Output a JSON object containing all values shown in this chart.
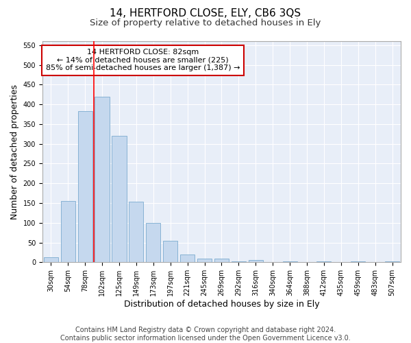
{
  "title": "14, HERTFORD CLOSE, ELY, CB6 3QS",
  "subtitle": "Size of property relative to detached houses in Ely",
  "xlabel": "Distribution of detached houses by size in Ely",
  "ylabel": "Number of detached properties",
  "categories": [
    "30sqm",
    "54sqm",
    "78sqm",
    "102sqm",
    "125sqm",
    "149sqm",
    "173sqm",
    "197sqm",
    "221sqm",
    "245sqm",
    "269sqm",
    "292sqm",
    "316sqm",
    "340sqm",
    "364sqm",
    "388sqm",
    "412sqm",
    "435sqm",
    "459sqm",
    "483sqm",
    "507sqm"
  ],
  "values": [
    13,
    155,
    383,
    420,
    320,
    153,
    100,
    55,
    20,
    10,
    10,
    2,
    5,
    1,
    3,
    1,
    2,
    1,
    2,
    1,
    3
  ],
  "bar_color": "#c5d8ee",
  "bar_edgecolor": "#7aabcf",
  "red_line_x": 2.5,
  "annotation_title": "14 HERTFORD CLOSE: 82sqm",
  "annotation_line1": "← 14% of detached houses are smaller (225)",
  "annotation_line2": "85% of semi-detached houses are larger (1,387) →",
  "ylim": [
    0,
    560
  ],
  "yticks": [
    0,
    50,
    100,
    150,
    200,
    250,
    300,
    350,
    400,
    450,
    500,
    550
  ],
  "footer_line1": "Contains HM Land Registry data © Crown copyright and database right 2024.",
  "footer_line2": "Contains public sector information licensed under the Open Government Licence v3.0.",
  "bg_color": "#ffffff",
  "plot_bg_color": "#e8eef8",
  "grid_color": "#ffffff",
  "title_fontsize": 11,
  "subtitle_fontsize": 9.5,
  "axis_label_fontsize": 9,
  "tick_fontsize": 7,
  "footer_fontsize": 7,
  "annotation_fontsize": 8
}
